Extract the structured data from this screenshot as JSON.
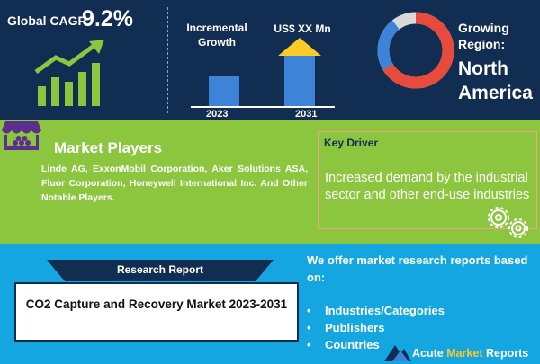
{
  "cagr": {
    "label": "Global CAGR",
    "value": "9.2%"
  },
  "growth": {
    "label": "Incremental Growth",
    "value_label": "US$ XX Mn",
    "start_year": "2023",
    "end_year": "2031"
  },
  "region": {
    "label": "Growing Region:",
    "name": "North America"
  },
  "market_players": {
    "title": "Market Players",
    "text": "Linde AG, ExxonMobil Corporation, Aker Solutions ASA, Fluor Corporation, Honeywell International Inc. And Other Notable Players."
  },
  "key_driver": {
    "title": "Key Driver",
    "text": "Increased demand by the industrial sector and other end-use industries"
  },
  "report": {
    "banner": "Research Report",
    "title": "CO2 Capture and Recovery Market 2023-2031"
  },
  "offer": {
    "intro": "We offer market research reports based on:",
    "items": [
      "Industries/Categories",
      "Publishers",
      "Countries"
    ]
  },
  "brand": {
    "part1": "Acute ",
    "part2": "Market",
    "part3": " Reports"
  },
  "colors": {
    "navy": "#122d52",
    "green": "#8cc63f",
    "blue": "#13a6e0",
    "bar": "#3d83d8",
    "arrow": "#ffc928"
  },
  "icons": [
    "growth-chart-icon",
    "donut-chart-icon",
    "market-stall-icon",
    "gear-icon",
    "logo-icon"
  ]
}
